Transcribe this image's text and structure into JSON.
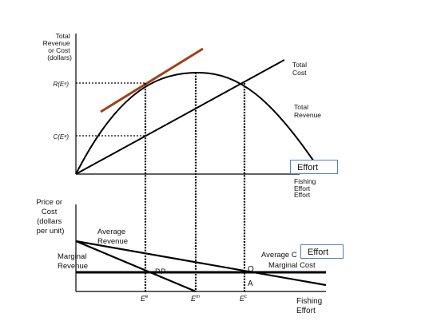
{
  "colors": {
    "curve": "#000000",
    "tangent": "#a0401a",
    "box_border": "#4f81bd"
  },
  "top_panel": {
    "y_axis_label": [
      "Total",
      "Revenue",
      "or Cost",
      "(dollars)"
    ],
    "r_tick": "R(Eᵉ)",
    "c_tick": "C(Eᵉ)",
    "total_cost_label": [
      "Total",
      "Cost"
    ],
    "total_revenue_label": [
      "Total",
      "Revenue"
    ],
    "x_axis_label": [
      "Fishing",
      "Effort",
      "Effort"
    ],
    "effort_box": "Effort"
  },
  "bottom_panel": {
    "y_axis_label": [
      "Price or",
      "Cost",
      "(dollars",
      "per unit)"
    ],
    "average_revenue_label": [
      "Average",
      "Revenue"
    ],
    "marginal_revenue_label": [
      "Marginal",
      "Revenue"
    ],
    "average_cost_label": "Average C",
    "marginal_cost_label": "Marginal Cost",
    "effort_box": "Effort",
    "point_p": "P",
    "point_o": "O",
    "point_a": "A",
    "x_axis_label": [
      "Fishing",
      "Effort"
    ],
    "x_ticks": [
      "E",
      "E",
      "E"
    ],
    "x_tick_superscripts": [
      "e",
      "m",
      "c"
    ]
  }
}
